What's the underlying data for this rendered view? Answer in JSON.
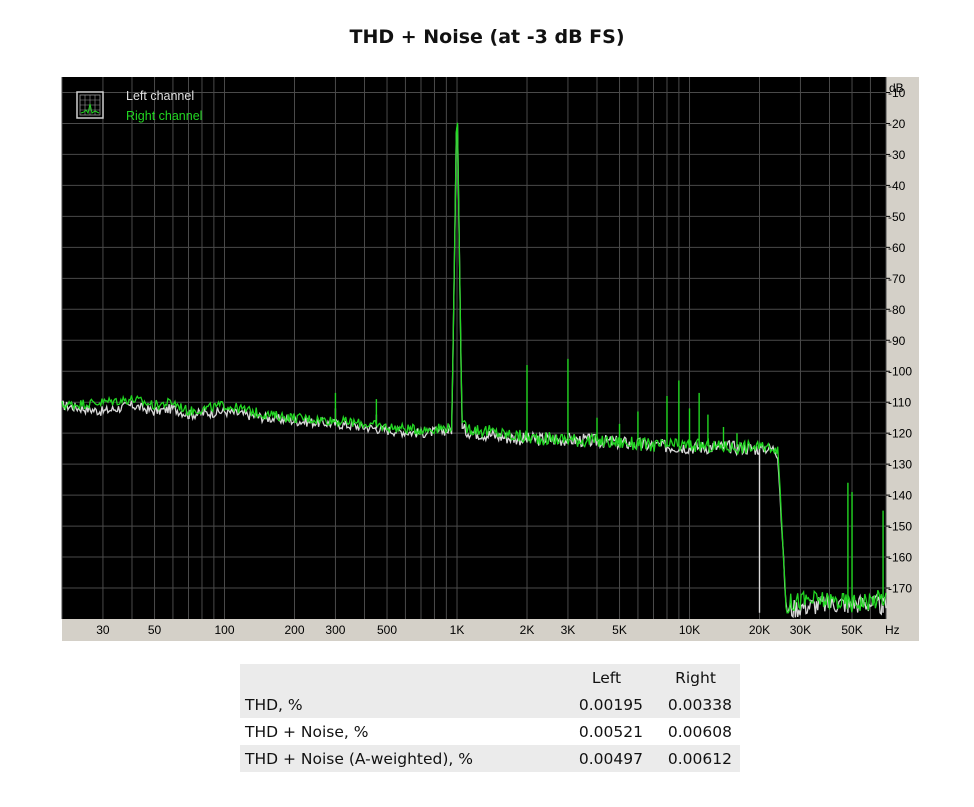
{
  "chart_data": {
    "type": "line",
    "title": "THD + Noise (at -3 dB FS)",
    "x_scale": "log",
    "xlim": [
      20,
      70000
    ],
    "ylim": [
      -180,
      -5
    ],
    "x_unit": "Hz",
    "y_unit": "dB",
    "grid": true,
    "legend_placement": "top-left",
    "x_tick_labels": [
      {
        "value": 30,
        "label": "30"
      },
      {
        "value": 50,
        "label": "50"
      },
      {
        "value": 100,
        "label": "100"
      },
      {
        "value": 200,
        "label": "200"
      },
      {
        "value": 300,
        "label": "300"
      },
      {
        "value": 500,
        "label": "500"
      },
      {
        "value": 1000,
        "label": "1K"
      },
      {
        "value": 2000,
        "label": "2K"
      },
      {
        "value": 3000,
        "label": "3K"
      },
      {
        "value": 5000,
        "label": "5K"
      },
      {
        "value": 10000,
        "label": "10K"
      },
      {
        "value": 20000,
        "label": "20K"
      },
      {
        "value": 30000,
        "label": "30K"
      },
      {
        "value": 50000,
        "label": "50K"
      }
    ],
    "y_tick_labels": [
      {
        "value": -10,
        "label": "-10"
      },
      {
        "value": -20,
        "label": "-20"
      },
      {
        "value": -30,
        "label": "-30"
      },
      {
        "value": -40,
        "label": "-40"
      },
      {
        "value": -50,
        "label": "-50"
      },
      {
        "value": -60,
        "label": "-60"
      },
      {
        "value": -70,
        "label": "-70"
      },
      {
        "value": -80,
        "label": "-80"
      },
      {
        "value": -90,
        "label": "-90"
      },
      {
        "value": -100,
        "label": "-100"
      },
      {
        "value": -110,
        "label": "-110"
      },
      {
        "value": -120,
        "label": "-120"
      },
      {
        "value": -130,
        "label": "-130"
      },
      {
        "value": -140,
        "label": "-140"
      },
      {
        "value": -150,
        "label": "-150"
      },
      {
        "value": -160,
        "label": "-160"
      },
      {
        "value": -170,
        "label": "-170"
      }
    ],
    "series": [
      {
        "name": "Left channel",
        "color": "#d8d8d8",
        "x": [
          20,
          30,
          40,
          50,
          60,
          70,
          100,
          150,
          200,
          300,
          400,
          500,
          700,
          950,
          1000,
          1050,
          1500,
          2000,
          3000,
          5000,
          7000,
          10000,
          15000,
          20000,
          23000,
          24000,
          25000,
          26000,
          27000,
          30000,
          40000,
          50000,
          60000,
          70000
        ],
        "y": [
          -111,
          -113,
          -111,
          -113,
          -112,
          -114,
          -113,
          -115,
          -116,
          -117,
          -118,
          -119,
          -120,
          -119,
          -9,
          -119,
          -121,
          -122,
          -122,
          -123,
          -124,
          -124.5,
          -124.5,
          -125,
          -125,
          -127,
          -152,
          -176,
          -177,
          -176,
          -175,
          -175,
          -175,
          -176
        ],
        "peaks": [
          {
            "x": 300,
            "y": -112
          },
          {
            "x": 450,
            "y": -114
          },
          {
            "x": 2000,
            "y": -120
          },
          {
            "x": 3000,
            "y": -121
          },
          {
            "x": 20000,
            "y": -178
          },
          {
            "x": 48000,
            "y": -178
          },
          {
            "x": 68000,
            "y": -178
          }
        ]
      },
      {
        "name": "Right channel",
        "color": "#22d622",
        "x": [
          20,
          30,
          40,
          50,
          60,
          70,
          100,
          150,
          200,
          300,
          400,
          500,
          700,
          950,
          1000,
          1050,
          1500,
          2000,
          3000,
          5000,
          7000,
          10000,
          15000,
          20000,
          23000,
          24000,
          25000,
          26000,
          27000,
          30000,
          40000,
          50000,
          60000,
          70000
        ],
        "y": [
          -111,
          -110,
          -109,
          -111,
          -110,
          -113,
          -111,
          -114,
          -115,
          -116,
          -117,
          -118,
          -119,
          -118,
          -8.5,
          -118,
          -120,
          -121.5,
          -122,
          -123,
          -124,
          -124,
          -124.5,
          -124.5,
          -124.5,
          -126,
          -150,
          -176,
          -175,
          -174,
          -174,
          -175,
          -174,
          -173
        ],
        "peaks": [
          {
            "x": 300,
            "y": -107
          },
          {
            "x": 450,
            "y": -109
          },
          {
            "x": 2000,
            "y": -98
          },
          {
            "x": 3000,
            "y": -96
          },
          {
            "x": 4000,
            "y": -115
          },
          {
            "x": 5000,
            "y": -117
          },
          {
            "x": 6000,
            "y": -113
          },
          {
            "x": 8000,
            "y": -108
          },
          {
            "x": 9000,
            "y": -103
          },
          {
            "x": 10000,
            "y": -112
          },
          {
            "x": 11000,
            "y": -107
          },
          {
            "x": 12000,
            "y": -114
          },
          {
            "x": 14000,
            "y": -118
          },
          {
            "x": 16000,
            "y": -120
          },
          {
            "x": 48000,
            "y": -136
          },
          {
            "x": 50000,
            "y": -139
          },
          {
            "x": 68000,
            "y": -145
          }
        ]
      }
    ]
  },
  "results_table": {
    "headers": [
      "",
      "Left",
      "Right"
    ],
    "rows": [
      {
        "label": "THD, %",
        "left": "0.00195",
        "right": "0.00338"
      },
      {
        "label": "THD + Noise, %",
        "left": "0.00521",
        "right": "0.00608"
      },
      {
        "label": "THD + Noise (A-weighted), %",
        "left": "0.00497",
        "right": "0.00612"
      }
    ]
  },
  "colors": {
    "plot_background": "#000000",
    "frame": "#d4d0c8",
    "grid": "#4a4a4a",
    "left_channel": "#d8d8d8",
    "right_channel": "#22d622"
  },
  "icons": {
    "legend": "spectrum-analyzer-icon"
  }
}
